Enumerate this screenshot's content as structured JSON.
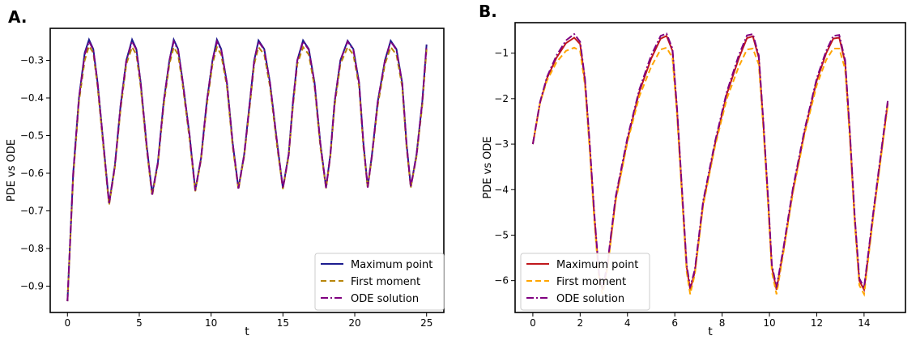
{
  "panels": [
    {
      "letter": "A."
    },
    {
      "letter": "B."
    }
  ],
  "chart_data": [
    {
      "type": "line",
      "panel": "A.",
      "xlabel": "t",
      "ylabel": "PDE vs ODE",
      "xlim": [
        -1.2,
        26.2
      ],
      "ylim": [
        -0.97,
        -0.215
      ],
      "xticks": [
        0,
        5,
        10,
        15,
        20,
        25
      ],
      "yticks": [
        -0.9,
        -0.8,
        -0.7,
        -0.6,
        -0.5,
        -0.4,
        -0.3
      ],
      "ytick_labels": [
        "−0.9",
        "−0.8",
        "−0.7",
        "−0.6",
        "−0.5",
        "−0.4",
        "−0.3"
      ],
      "legend_position": "lower right",
      "series": [
        {
          "name": "Maximum point",
          "color": "#1c1c8f",
          "dash": "solid",
          "x": [
            0,
            0.4,
            0.8,
            1.2,
            1.5,
            1.8,
            2.1,
            2.5,
            2.9,
            3.3,
            3.7,
            4.1,
            4.5,
            4.8,
            5.1,
            5.5,
            5.9,
            6.3,
            6.7,
            7.1,
            7.4,
            7.7,
            8.0,
            8.5,
            8.9,
            9.3,
            9.7,
            10.1,
            10.4,
            10.7,
            11.1,
            11.5,
            11.9,
            12.3,
            12.7,
            13.0,
            13.3,
            13.7,
            14.1,
            14.6,
            15.0,
            15.4,
            15.7,
            16.0,
            16.4,
            16.8,
            17.2,
            17.6,
            18.0,
            18.3,
            18.6,
            19.0,
            19.5,
            19.9,
            20.3,
            20.6,
            20.9,
            21.2,
            21.6,
            22.1,
            22.5,
            22.9,
            23.3,
            23.6,
            23.9,
            24.3,
            24.7,
            25.0
          ],
          "y": [
            -0.94,
            -0.6,
            -0.4,
            -0.28,
            -0.245,
            -0.27,
            -0.36,
            -0.52,
            -0.68,
            -0.58,
            -0.42,
            -0.3,
            -0.245,
            -0.27,
            -0.36,
            -0.52,
            -0.655,
            -0.57,
            -0.41,
            -0.3,
            -0.245,
            -0.27,
            -0.35,
            -0.5,
            -0.645,
            -0.56,
            -0.41,
            -0.3,
            -0.245,
            -0.27,
            -0.36,
            -0.52,
            -0.64,
            -0.55,
            -0.41,
            -0.3,
            -0.247,
            -0.27,
            -0.36,
            -0.52,
            -0.64,
            -0.55,
            -0.41,
            -0.3,
            -0.247,
            -0.27,
            -0.36,
            -0.52,
            -0.638,
            -0.55,
            -0.41,
            -0.3,
            -0.248,
            -0.27,
            -0.36,
            -0.52,
            -0.637,
            -0.55,
            -0.41,
            -0.3,
            -0.248,
            -0.27,
            -0.36,
            -0.52,
            -0.636,
            -0.55,
            -0.41,
            -0.258
          ]
        },
        {
          "name": "First moment",
          "color": "#b8860b",
          "dash": "dashed",
          "x": [
            0,
            0.4,
            0.8,
            1.2,
            1.5,
            1.8,
            2.1,
            2.5,
            2.9,
            3.3,
            3.7,
            4.1,
            4.5,
            4.8,
            5.1,
            5.5,
            5.9,
            6.3,
            6.7,
            7.1,
            7.4,
            7.7,
            8.0,
            8.5,
            8.9,
            9.3,
            9.7,
            10.1,
            10.4,
            10.7,
            11.1,
            11.5,
            11.9,
            12.3,
            12.7,
            13.0,
            13.3,
            13.7,
            14.1,
            14.6,
            15.0,
            15.4,
            15.7,
            16.0,
            16.4,
            16.8,
            17.2,
            17.6,
            18.0,
            18.3,
            18.6,
            19.0,
            19.5,
            19.9,
            20.3,
            20.6,
            20.9,
            21.2,
            21.6,
            22.1,
            22.5,
            22.9,
            23.3,
            23.6,
            23.9,
            24.3,
            24.7,
            25.0
          ],
          "y": [
            -0.94,
            -0.61,
            -0.41,
            -0.3,
            -0.262,
            -0.28,
            -0.37,
            -0.53,
            -0.685,
            -0.585,
            -0.43,
            -0.31,
            -0.265,
            -0.285,
            -0.37,
            -0.53,
            -0.66,
            -0.575,
            -0.42,
            -0.31,
            -0.265,
            -0.285,
            -0.36,
            -0.51,
            -0.648,
            -0.565,
            -0.42,
            -0.31,
            -0.265,
            -0.285,
            -0.37,
            -0.53,
            -0.643,
            -0.555,
            -0.42,
            -0.31,
            -0.265,
            -0.285,
            -0.37,
            -0.53,
            -0.642,
            -0.555,
            -0.42,
            -0.31,
            -0.265,
            -0.285,
            -0.37,
            -0.53,
            -0.64,
            -0.555,
            -0.42,
            -0.31,
            -0.265,
            -0.285,
            -0.37,
            -0.53,
            -0.639,
            -0.555,
            -0.42,
            -0.31,
            -0.265,
            -0.285,
            -0.37,
            -0.53,
            -0.638,
            -0.555,
            -0.42,
            -0.27
          ]
        },
        {
          "name": "ODE solution",
          "color": "#800080",
          "dash": "dashdot",
          "x": [
            0,
            0.4,
            0.8,
            1.2,
            1.5,
            1.8,
            2.1,
            2.5,
            2.9,
            3.3,
            3.7,
            4.1,
            4.5,
            4.8,
            5.1,
            5.5,
            5.9,
            6.3,
            6.7,
            7.1,
            7.4,
            7.7,
            8.0,
            8.5,
            8.9,
            9.3,
            9.7,
            10.1,
            10.4,
            10.7,
            11.1,
            11.5,
            11.9,
            12.3,
            12.7,
            13.0,
            13.3,
            13.7,
            14.1,
            14.6,
            15.0,
            15.4,
            15.7,
            16.0,
            16.4,
            16.8,
            17.2,
            17.6,
            18.0,
            18.3,
            18.6,
            19.0,
            19.5,
            19.9,
            20.3,
            20.6,
            20.9,
            21.2,
            21.6,
            22.1,
            22.5,
            22.9,
            23.3,
            23.6,
            23.9,
            24.3,
            24.7,
            25.0
          ],
          "y": [
            -0.94,
            -0.6,
            -0.4,
            -0.285,
            -0.25,
            -0.272,
            -0.36,
            -0.52,
            -0.682,
            -0.582,
            -0.42,
            -0.3,
            -0.25,
            -0.272,
            -0.36,
            -0.52,
            -0.657,
            -0.572,
            -0.41,
            -0.3,
            -0.25,
            -0.272,
            -0.35,
            -0.5,
            -0.646,
            -0.562,
            -0.41,
            -0.3,
            -0.25,
            -0.272,
            -0.36,
            -0.52,
            -0.641,
            -0.552,
            -0.41,
            -0.3,
            -0.25,
            -0.272,
            -0.36,
            -0.52,
            -0.64,
            -0.552,
            -0.41,
            -0.3,
            -0.25,
            -0.272,
            -0.36,
            -0.52,
            -0.639,
            -0.552,
            -0.41,
            -0.3,
            -0.25,
            -0.272,
            -0.36,
            -0.52,
            -0.638,
            -0.552,
            -0.41,
            -0.3,
            -0.25,
            -0.272,
            -0.36,
            -0.52,
            -0.637,
            -0.552,
            -0.41,
            -0.26
          ]
        }
      ]
    },
    {
      "type": "line",
      "panel": "B.",
      "xlabel": "t",
      "ylabel": "PDE vs ODE",
      "xlim": [
        -0.75,
        15.75
      ],
      "ylim": [
        -6.7,
        -0.33
      ],
      "xticks": [
        0,
        2,
        4,
        6,
        8,
        10,
        12,
        14
      ],
      "yticks": [
        -6,
        -5,
        -4,
        -3,
        -2,
        -1
      ],
      "ytick_labels": [
        "−6",
        "−5",
        "−4",
        "−3",
        "−2",
        "−1"
      ],
      "legend_position": "lower left",
      "series": [
        {
          "name": "Maximum point",
          "color": "#c0181c",
          "dash": "solid",
          "x": [
            0,
            0.3,
            0.6,
            1.0,
            1.4,
            1.75,
            2.0,
            2.2,
            2.4,
            2.6,
            2.8,
            2.95,
            3.15,
            3.5,
            4.0,
            4.5,
            5.0,
            5.4,
            5.65,
            5.9,
            6.1,
            6.3,
            6.5,
            6.65,
            6.85,
            7.2,
            7.7,
            8.2,
            8.7,
            9.05,
            9.3,
            9.55,
            9.75,
            9.95,
            10.1,
            10.3,
            10.6,
            11.0,
            11.5,
            12.0,
            12.4,
            12.7,
            12.95,
            13.2,
            13.4,
            13.6,
            13.8,
            14.0,
            14.4,
            15.0
          ],
          "y": [
            -3.0,
            -2.1,
            -1.55,
            -1.1,
            -0.78,
            -0.66,
            -0.8,
            -1.6,
            -3.0,
            -4.6,
            -5.9,
            -6.2,
            -5.7,
            -4.2,
            -2.9,
            -1.85,
            -1.12,
            -0.68,
            -0.62,
            -0.95,
            -2.3,
            -4.0,
            -5.7,
            -6.2,
            -5.8,
            -4.3,
            -3.0,
            -1.9,
            -1.12,
            -0.67,
            -0.63,
            -1.1,
            -2.6,
            -4.3,
            -5.7,
            -6.2,
            -5.3,
            -4.0,
            -2.7,
            -1.6,
            -1.0,
            -0.68,
            -0.66,
            -1.2,
            -2.8,
            -4.6,
            -6.0,
            -6.2,
            -4.5,
            -2.1
          ]
        },
        {
          "name": "First moment",
          "color": "#ffa500",
          "dash": "dashed",
          "x": [
            0,
            0.3,
            0.6,
            1.0,
            1.4,
            1.75,
            2.0,
            2.2,
            2.4,
            2.6,
            2.8,
            2.95,
            3.15,
            3.5,
            4.0,
            4.5,
            5.0,
            5.4,
            5.65,
            5.9,
            6.1,
            6.3,
            6.5,
            6.65,
            6.85,
            7.2,
            7.7,
            8.2,
            8.7,
            9.05,
            9.3,
            9.55,
            9.75,
            9.95,
            10.1,
            10.3,
            10.6,
            11.0,
            11.5,
            12.0,
            12.4,
            12.7,
            12.95,
            13.2,
            13.4,
            13.6,
            13.8,
            14.0,
            14.4,
            15.0
          ],
          "y": [
            -3.0,
            -2.1,
            -1.6,
            -1.2,
            -0.95,
            -0.88,
            -0.95,
            -1.7,
            -3.1,
            -4.7,
            -6.0,
            -6.3,
            -5.75,
            -4.25,
            -2.95,
            -1.95,
            -1.3,
            -0.92,
            -0.88,
            -1.1,
            -2.4,
            -4.1,
            -5.8,
            -6.3,
            -5.85,
            -4.35,
            -3.05,
            -2.0,
            -1.3,
            -0.92,
            -0.9,
            -1.25,
            -2.7,
            -4.4,
            -5.8,
            -6.3,
            -5.35,
            -4.05,
            -2.75,
            -1.7,
            -1.15,
            -0.9,
            -0.9,
            -1.35,
            -2.9,
            -4.7,
            -6.1,
            -6.3,
            -4.55,
            -2.15
          ]
        },
        {
          "name": "ODE solution",
          "color": "#800080",
          "dash": "dashdot",
          "x": [
            0,
            0.3,
            0.6,
            1.0,
            1.4,
            1.75,
            2.0,
            2.2,
            2.4,
            2.6,
            2.8,
            2.95,
            3.15,
            3.5,
            4.0,
            4.5,
            5.0,
            5.4,
            5.65,
            5.9,
            6.1,
            6.3,
            6.5,
            6.65,
            6.85,
            7.2,
            7.7,
            8.2,
            8.7,
            9.05,
            9.3,
            9.55,
            9.75,
            9.95,
            10.1,
            10.3,
            10.6,
            11.0,
            11.5,
            12.0,
            12.4,
            12.7,
            12.95,
            13.2,
            13.4,
            13.6,
            13.8,
            14.0,
            14.4,
            15.0
          ],
          "y": [
            -3.0,
            -2.08,
            -1.52,
            -1.05,
            -0.72,
            -0.58,
            -0.75,
            -1.55,
            -2.95,
            -4.55,
            -5.85,
            -6.15,
            -5.65,
            -4.15,
            -2.85,
            -1.8,
            -1.05,
            -0.62,
            -0.57,
            -0.9,
            -2.25,
            -3.95,
            -5.65,
            -6.15,
            -5.75,
            -4.25,
            -2.95,
            -1.85,
            -1.05,
            -0.61,
            -0.58,
            -1.05,
            -2.55,
            -4.25,
            -5.65,
            -6.15,
            -5.25,
            -3.95,
            -2.65,
            -1.55,
            -0.95,
            -0.62,
            -0.6,
            -1.15,
            -2.75,
            -4.55,
            -5.95,
            -6.15,
            -4.45,
            -2.05
          ]
        }
      ]
    }
  ]
}
